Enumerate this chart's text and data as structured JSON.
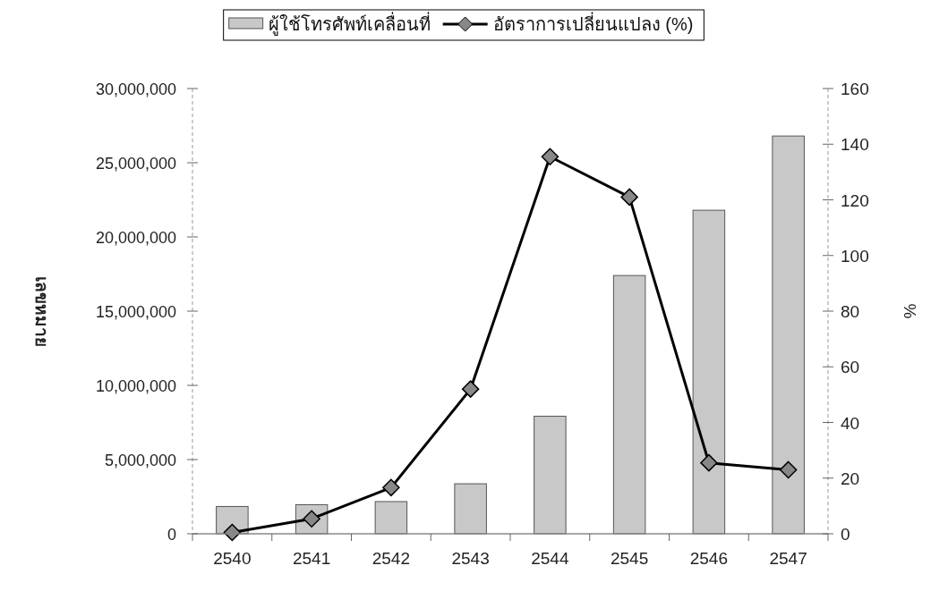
{
  "chart_data": {
    "type": "bar",
    "ylabel": "เลขหมาย",
    "y2label": "%",
    "categories": [
      "2540",
      "2541",
      "2542",
      "2543",
      "2544",
      "2545",
      "2546",
      "2547"
    ],
    "series": [
      {
        "name": "ผู้ใช้โทรศัพท์เคลื่อนที่",
        "color": "#c8c8c8",
        "values": [
          1840000,
          1960000,
          2170000,
          3370000,
          7920000,
          17400000,
          21800000,
          26800000
        ]
      },
      {
        "name": "อัตราการเปลี่ยนแปลง (%)",
        "type": "line",
        "axis": "y2",
        "color": "#000000",
        "marker": "diamond",
        "values": [
          0.5,
          5.4,
          16.6,
          52,
          135.5,
          121,
          25.5,
          23
        ]
      }
    ],
    "ylim": [
      0,
      30000000
    ],
    "yticks": [
      {
        "value": 0,
        "label": "0"
      },
      {
        "value": 5000000,
        "label": "5,000,000"
      },
      {
        "value": 10000000,
        "label": "10,000,000"
      },
      {
        "value": 15000000,
        "label": "15,000,000"
      },
      {
        "value": 20000000,
        "label": "20,000,000"
      },
      {
        "value": 25000000,
        "label": "25,000,000"
      },
      {
        "value": 30000000,
        "label": "30,000,000"
      }
    ],
    "y2lim": [
      0,
      160
    ],
    "y2ticks": [
      0,
      20,
      40,
      60,
      80,
      100,
      120,
      140,
      160
    ],
    "grid": false,
    "legend": "top"
  }
}
